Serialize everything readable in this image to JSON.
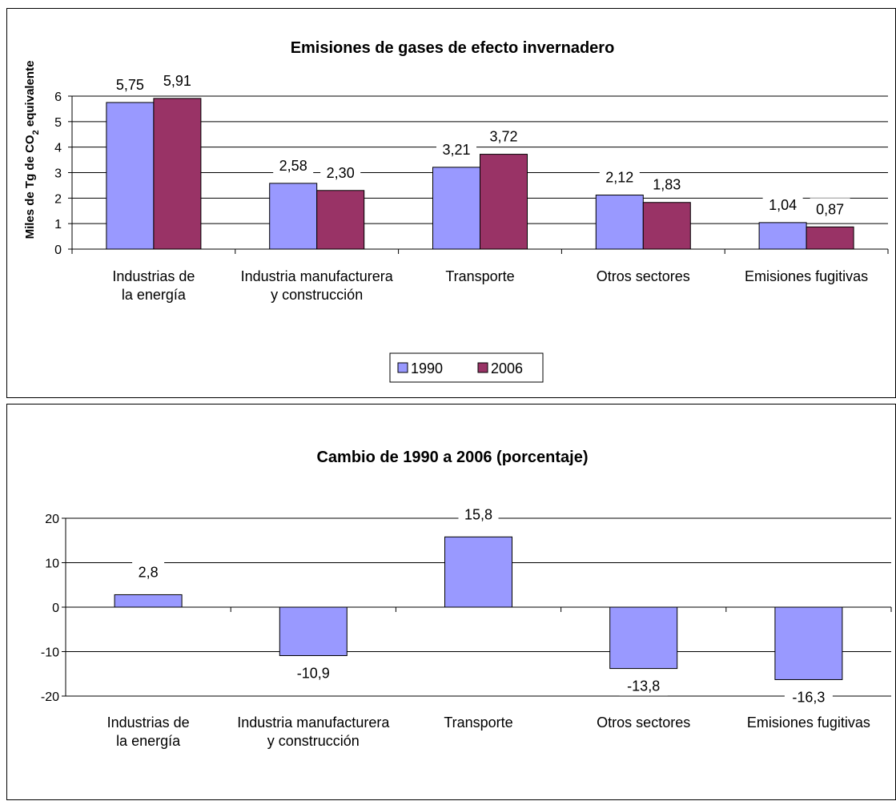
{
  "chart_data": [
    {
      "type": "bar",
      "title": "Emisiones de gases de efecto invernadero",
      "ylabel": {
        "pre": "Miles de Tg de CO",
        "sub": "2",
        "post": " equivalente"
      },
      "xlabel": "",
      "categories": [
        [
          "Industrias de",
          "la energía"
        ],
        [
          "Industria manufacturera",
          "y construcción"
        ],
        [
          "Transporte"
        ],
        [
          "Otros sectores"
        ],
        [
          "Emisiones fugitivas"
        ]
      ],
      "series": [
        {
          "name": "1990",
          "values": [
            5.75,
            2.58,
            3.21,
            2.12,
            1.04
          ],
          "labels": [
            "5,75",
            "2,58",
            "3,21",
            "2,12",
            "1,04"
          ],
          "color": "#9999ff"
        },
        {
          "name": "2006",
          "values": [
            5.91,
            2.3,
            3.72,
            1.83,
            0.87
          ],
          "labels": [
            "5,91",
            "2,30",
            "3,72",
            "1,83",
            "0,87"
          ],
          "color": "#993366"
        }
      ],
      "yticks": [
        0,
        1,
        2,
        3,
        4,
        5,
        6
      ],
      "ylim": [
        0,
        6
      ],
      "grid": true,
      "legend": "bottom-center"
    },
    {
      "type": "bar",
      "title": "Cambio de 1990 a 2006 (porcentaje)",
      "xlabel": "",
      "ylabel": "",
      "categories": [
        [
          "Industrias de",
          "la energía"
        ],
        [
          "Industria manufacturera",
          "y construcción"
        ],
        [
          "Transporte"
        ],
        [
          "Otros sectores"
        ],
        [
          "Emisiones fugitivas"
        ]
      ],
      "series": [
        {
          "values": [
            2.8,
            -10.9,
            15.8,
            -13.8,
            -16.3
          ],
          "labels": [
            "2,8",
            "-10,9",
            "15,8",
            "-13,8",
            "-16,3"
          ],
          "color": "#9999ff"
        }
      ],
      "yticks": [
        -20,
        -10,
        0,
        10,
        20
      ],
      "ylim": [
        -20,
        20
      ],
      "grid": true,
      "legend": "none"
    }
  ]
}
